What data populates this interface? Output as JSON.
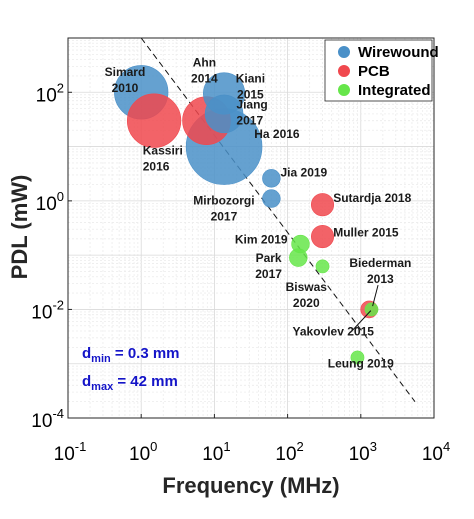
{
  "chart_data": {
    "type": "scatter",
    "x_scale": "log",
    "y_scale": "log",
    "xlabel": "Frequency (MHz)",
    "ylabel": "PDL (mW)",
    "xlim": [
      0.1,
      10000
    ],
    "ylim": [
      0.0001,
      1000
    ],
    "x_ticks": [
      {
        "value": 0.1,
        "base": "10",
        "exp": "-1"
      },
      {
        "value": 1,
        "base": "10",
        "exp": "0"
      },
      {
        "value": 10,
        "base": "10",
        "exp": "1"
      },
      {
        "value": 100,
        "base": "10",
        "exp": "2"
      },
      {
        "value": 1000,
        "base": "10",
        "exp": "3"
      },
      {
        "value": 10000,
        "base": "10",
        "exp": "4"
      }
    ],
    "y_ticks": [
      {
        "value": 0.0001,
        "base": "10",
        "exp": "-4"
      },
      {
        "value": 0.01,
        "base": "10",
        "exp": "-2"
      },
      {
        "value": 1,
        "base": "10",
        "exp": "0"
      },
      {
        "value": 100,
        "base": "10",
        "exp": "2"
      }
    ],
    "grid": true,
    "legend_position": "top-right",
    "series": [
      {
        "name": "Wirewound",
        "color": "#4a90c8",
        "points": [
          {
            "label": "Simard 2010",
            "x": 1.0,
            "y": 100,
            "size": 20
          },
          {
            "label": "Kiani 2015",
            "x": 13.56,
            "y": 95,
            "size": 12
          },
          {
            "label": "Jiang 2017",
            "x": 13.56,
            "y": 40,
            "size": 10
          },
          {
            "label": "Ha 2016",
            "x": 13.56,
            "y": 10,
            "size": 40
          },
          {
            "label": "Jia 2019",
            "x": 60,
            "y": 2.6,
            "size": 2.2
          },
          {
            "label": "Mirbozorgi 2017",
            "x": 60,
            "y": 1.1,
            "size": 2.2
          }
        ]
      },
      {
        "name": "PCB",
        "color": "#f0484e",
        "points": [
          {
            "label": "Kassiri 2016",
            "x": 1.5,
            "y": 30,
            "size": 20
          },
          {
            "label": "Ahn 2014",
            "x": 7.8,
            "y": 30,
            "size": 16
          },
          {
            "label": "Sutardja 2018",
            "x": 300,
            "y": 0.85,
            "size": 3.5
          },
          {
            "label": "Muller 2015",
            "x": 300,
            "y": 0.22,
            "size": 3.5
          },
          {
            "label": "Yakovlev 2015",
            "x": 1300,
            "y": 0.01,
            "size": 2
          }
        ]
      },
      {
        "name": "Integrated",
        "color": "#66e64a",
        "points": [
          {
            "label": "Kim 2019",
            "x": 150,
            "y": 0.16,
            "size": 2.2
          },
          {
            "label": "Park 2017",
            "x": 140,
            "y": 0.09,
            "size": 2.2
          },
          {
            "label": "Biswas 2020",
            "x": 300,
            "y": 0.062,
            "size": 1.2
          },
          {
            "label": "Biederman 2013",
            "x": 1400,
            "y": 0.01,
            "size": 1.2
          },
          {
            "label": "Leung 2019",
            "x": 900,
            "y": 0.0013,
            "size": 1.2
          }
        ]
      }
    ],
    "annotations": [
      {
        "lines": [
          "Simard",
          "2010"
        ],
        "anchor": "middle",
        "x": 0.6,
        "y": 200
      },
      {
        "lines": [
          "Ahn",
          "2014"
        ],
        "anchor": "middle",
        "x": 7.3,
        "y": 300
      },
      {
        "lines": [
          "Kiani",
          "2015"
        ],
        "anchor": "middle",
        "x": 31,
        "y": 150
      },
      {
        "lines": [
          "Kassiri",
          "2016"
        ],
        "anchor": "start",
        "x": 1.05,
        "y": 7.2
      },
      {
        "lines": [
          "Jiang",
          "2017"
        ],
        "anchor": "start",
        "x": 20,
        "y": 50
      },
      {
        "lines": [
          "Ha 2016"
        ],
        "anchor": "start",
        "x": 35,
        "y": 14.5
      },
      {
        "lines": [
          "Jia 2019"
        ],
        "anchor": "start",
        "x": 80,
        "y": 2.8
      },
      {
        "lines": [
          "Mirbozorgi",
          "2017"
        ],
        "anchor": "middle",
        "x": 13.5,
        "y": 0.85
      },
      {
        "lines": [
          "Sutardja 2018"
        ],
        "anchor": "start",
        "x": 420,
        "y": 0.95
      },
      {
        "lines": [
          "Kim 2019"
        ],
        "anchor": "end",
        "x": 100,
        "y": 0.165
      },
      {
        "lines": [
          "Muller 2015"
        ],
        "anchor": "start",
        "x": 420,
        "y": 0.22
      },
      {
        "lines": [
          "Park",
          "2017"
        ],
        "anchor": "middle",
        "x": 55,
        "y": 0.075
      },
      {
        "lines": [
          "Biswas",
          "2020"
        ],
        "anchor": "middle",
        "x": 180,
        "y": 0.022
      },
      {
        "lines": [
          "Biederman",
          "2013"
        ],
        "anchor": "middle",
        "x": 1850,
        "y": 0.06
      },
      {
        "lines": [
          "Yakovlev 2015"
        ],
        "anchor": "middle",
        "x": 420,
        "y": 0.0033
      },
      {
        "lines": [
          "Leung 2019"
        ],
        "anchor": "middle",
        "x": 1000,
        "y": 0.00085
      }
    ],
    "diagonal_line": {
      "from": [
        1,
        1000
      ],
      "to": [
        5500,
        0.0002
      ]
    },
    "dimension_notes": [
      {
        "main": "d",
        "sub": "min",
        "text": " = 0.3 mm"
      },
      {
        "main": "d",
        "sub": "max",
        "text": " = 42 mm"
      }
    ]
  }
}
